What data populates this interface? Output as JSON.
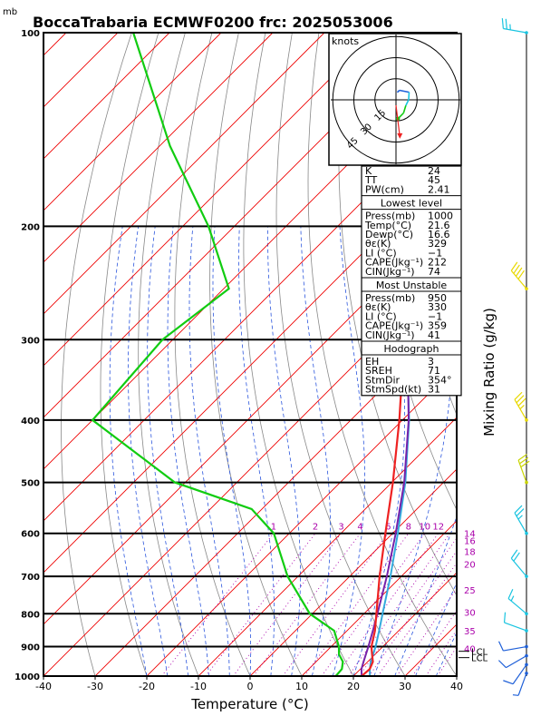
{
  "title": "BoccaTrabaria ECMWF0200 frc: 2025053006",
  "pressure_unit": "mb",
  "xlabel": "Temperature (°C)",
  "right_axis_label": "Mixing Ratio (g/kg)",
  "colors": {
    "isotherm": "#ee0000",
    "dry_adiabat": "#888888",
    "moist_adiabat": "#2a55dd",
    "mixing_ratio": "#aa00aa",
    "temperature": "#ee2222",
    "dewpoint": "#11cc11",
    "parcel": "#7722aa",
    "virtual": "#33aadd"
  },
  "chart_data": {
    "type": "line",
    "title": "BoccaTrabaria ECMWF0200 frc: 2025053006",
    "xlabel": "Temperature (°C)",
    "ylabel": "mb",
    "xlim": [
      -40,
      40
    ],
    "ylim": [
      1000,
      100
    ],
    "y_scale": "log",
    "skew_degrees": 45,
    "x_ticks": [
      -40,
      -30,
      -20,
      -10,
      0,
      10,
      20,
      30,
      40
    ],
    "y_ticks": [
      100,
      200,
      300,
      400,
      500,
      600,
      700,
      800,
      900,
      1000
    ],
    "mixing_ratio_labels": [
      "1",
      "2",
      "3",
      "4",
      "6",
      "8",
      "10",
      "12",
      "14",
      "16",
      "18",
      "20",
      "25",
      "30",
      "35",
      "40"
    ],
    "mixing_ratio_values": [
      1,
      2,
      3,
      4,
      6,
      8,
      10,
      12,
      14,
      16,
      18,
      20,
      25,
      30,
      35,
      40
    ],
    "series": [
      {
        "key": "temperature",
        "p": [
          1000,
          975,
          950,
          925,
          900,
          850,
          800,
          700,
          600,
          500,
          400,
          300,
          260,
          200,
          150,
          100
        ],
        "t": [
          21.6,
          21.8,
          21.0,
          19.4,
          17.8,
          15.4,
          12.4,
          5.8,
          -1.4,
          -9.8,
          -20.6,
          -35.2,
          -43.5,
          -47.0,
          -48.5,
          -51.5
        ]
      },
      {
        "key": "dewpoint",
        "p": [
          1000,
          975,
          950,
          925,
          900,
          850,
          800,
          700,
          600,
          550,
          500,
          400,
          300,
          250,
          200,
          150,
          100
        ],
        "t": [
          16.6,
          16.4,
          15.2,
          13.0,
          11.5,
          7.5,
          -0.5,
          -12.0,
          -23.0,
          -32.0,
          -52.0,
          -80.0,
          -82.0,
          -79.0,
          -95.0,
          -118.0,
          -147.0
        ]
      },
      {
        "key": "parcel",
        "p": [
          1000,
          975,
          950,
          900,
          850,
          800,
          700,
          600,
          500,
          400,
          300,
          250,
          200,
          150,
          100
        ],
        "t": [
          21.6,
          20.2,
          19.2,
          17.2,
          15.0,
          12.6,
          7.2,
          0.6,
          -7.6,
          -18.8,
          -34.6,
          -45.0,
          -57.5,
          -72.0,
          -90.0
        ]
      },
      {
        "key": "virtual",
        "p": [
          1000,
          975,
          950,
          900,
          850,
          800,
          700,
          600,
          500,
          400,
          300,
          250,
          200,
          150,
          100
        ],
        "t": [
          23.2,
          21.8,
          20.6,
          18.6,
          16.2,
          13.6,
          7.9,
          1.0,
          -7.4,
          -18.7,
          -34.7,
          -45.3,
          -58.0,
          -72.8,
          -91.0
        ]
      }
    ],
    "lcl_pressure_mb": 930,
    "lcl_label": "LCL",
    "lcl_labels_drawn": [
      "LCL",
      "LCL"
    ]
  },
  "hodograph": {
    "unit_label": "knots",
    "rings": [
      15,
      30,
      45
    ],
    "ring_labels": [
      "15",
      "30",
      "45"
    ],
    "wind_kt": [
      {
        "dir": 190,
        "spd": 6
      },
      {
        "dir": 200,
        "spd": 8
      },
      {
        "dir": 240,
        "spd": 12
      },
      {
        "dir": 270,
        "spd": 10
      },
      {
        "dir": 300,
        "spd": 9
      },
      {
        "dir": 330,
        "spd": 12
      },
      {
        "dir": 354,
        "spd": 15
      }
    ],
    "storm_marker_kt": {
      "dir": 354,
      "spd": 31
    }
  },
  "index_box": {
    "top": [
      {
        "label": "K",
        "value": "24"
      },
      {
        "label": "TT",
        "value": "45"
      },
      {
        "label": "PW(cm)",
        "value": "2.41"
      }
    ],
    "sections": [
      {
        "title": "Lowest level",
        "rows": [
          {
            "label": "Press(mb)",
            "value": "1000"
          },
          {
            "label": "Temp(°C)",
            "value": "21.6"
          },
          {
            "label": "Dewp(°C)",
            "value": "16.6"
          },
          {
            "label": "θε(K)",
            "value": "329"
          },
          {
            "label": "LI (°C)",
            "value": "−1"
          },
          {
            "label": "CAPE(Jkg⁻¹)",
            "value": "212"
          },
          {
            "label": "CIN(Jkg⁻¹)",
            "value": "74"
          }
        ]
      },
      {
        "title": "Most Unstable",
        "rows": [
          {
            "label": "Press(mb)",
            "value": "950"
          },
          {
            "label": "θε(K)",
            "value": "330"
          },
          {
            "label": "LI (°C)",
            "value": "−1"
          },
          {
            "label": "CAPE(Jkg⁻¹)",
            "value": "359"
          },
          {
            "label": "CIN(Jkg⁻¹)",
            "value": "41"
          }
        ]
      },
      {
        "title": "Hodograph",
        "rows": [
          {
            "label": "EH",
            "value": "3"
          },
          {
            "label": "SREH",
            "value": "71"
          },
          {
            "label": "StmDir",
            "value": "354°"
          },
          {
            "label": "StmSpd(kt)",
            "value": "31"
          }
        ]
      }
    ]
  },
  "wind_barbs": [
    {
      "p": 990,
      "dir": 200,
      "spd": 8,
      "color": "#1e5fd8"
    },
    {
      "p": 960,
      "dir": 215,
      "spd": 10,
      "color": "#1e5fd8"
    },
    {
      "p": 930,
      "dir": 240,
      "spd": 12,
      "color": "#1e5fd8"
    },
    {
      "p": 900,
      "dir": 260,
      "spd": 12,
      "color": "#1e5fd8"
    },
    {
      "p": 850,
      "dir": 290,
      "spd": 14,
      "color": "#19c4e0"
    },
    {
      "p": 800,
      "dir": 310,
      "spd": 18,
      "color": "#19c4e0"
    },
    {
      "p": 700,
      "dir": 320,
      "spd": 22,
      "color": "#19c4e0"
    },
    {
      "p": 600,
      "dir": 330,
      "spd": 26,
      "color": "#19c4e0"
    },
    {
      "p": 500,
      "dir": 340,
      "spd": 30,
      "color": "#c8d400"
    },
    {
      "p": 400,
      "dir": 330,
      "spd": 35,
      "color": "#e8d800"
    },
    {
      "p": 250,
      "dir": 320,
      "spd": 40,
      "color": "#e8d800"
    },
    {
      "p": 100,
      "dir": 280,
      "spd": 25,
      "color": "#19c4e0"
    }
  ]
}
